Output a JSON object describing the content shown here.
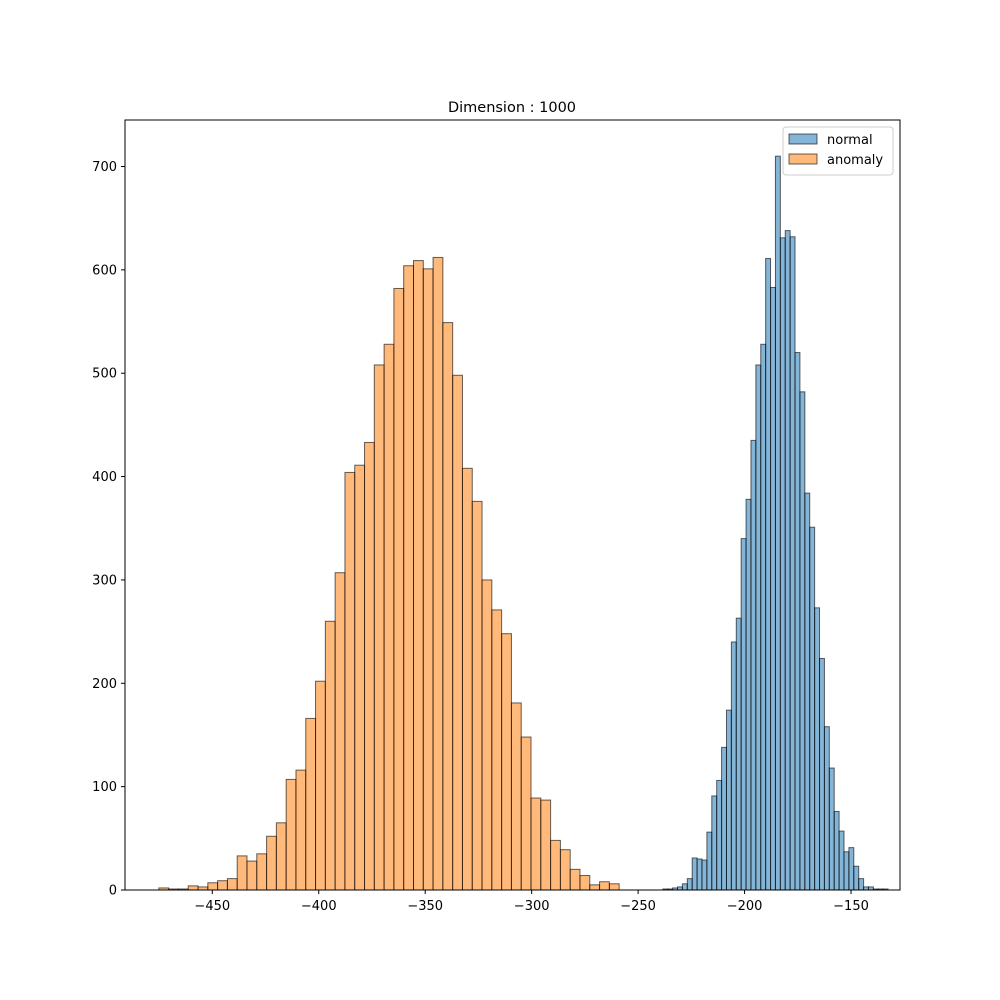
{
  "chart_data": {
    "type": "bar",
    "title": "Dimension : 1000",
    "xlabel": "",
    "ylabel": "",
    "xlim": [
      -491,
      -127
    ],
    "ylim": [
      0,
      745
    ],
    "x_ticks": [
      -450,
      -400,
      -350,
      -300,
      -250,
      -200,
      -150
    ],
    "x_tick_labels": [
      "−450",
      "−400",
      "−350",
      "−300",
      "−250",
      "−200",
      "−150"
    ],
    "y_ticks": [
      0,
      100,
      200,
      300,
      400,
      500,
      600,
      700
    ],
    "y_tick_labels": [
      "0",
      "100",
      "200",
      "300",
      "400",
      "500",
      "600",
      "700"
    ],
    "grid": false,
    "legend_position": "top-right",
    "series": [
      {
        "name": "normal",
        "color": "#1f77b4",
        "bin_start": -238.4,
        "bin_width": 2.3,
        "values": [
          1,
          1,
          2,
          3,
          6,
          11,
          31,
          30,
          29,
          56,
          91,
          106,
          138,
          174,
          240,
          263,
          340,
          378,
          435,
          508,
          528,
          611,
          583,
          710,
          631,
          638,
          632,
          520,
          482,
          384,
          351,
          273,
          224,
          158,
          118,
          76,
          57,
          37,
          41,
          23,
          11,
          3,
          3,
          1,
          1,
          1
        ]
      },
      {
        "name": "anomaly",
        "color": "#ff7f0e",
        "bin_start": -475.1,
        "bin_width": 4.6,
        "values": [
          2,
          1,
          1,
          4,
          3,
          7,
          9,
          11,
          33,
          28,
          35,
          52,
          65,
          107,
          116,
          166,
          202,
          260,
          307,
          404,
          411,
          433,
          508,
          528,
          582,
          604,
          609,
          601,
          612,
          549,
          498,
          408,
          376,
          300,
          271,
          248,
          181,
          148,
          89,
          87,
          48,
          39,
          20,
          14,
          5,
          8,
          6
        ]
      }
    ]
  }
}
